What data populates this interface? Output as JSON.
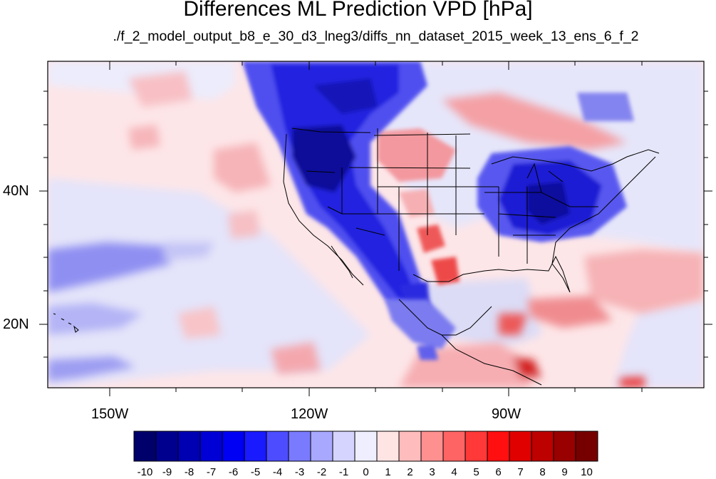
{
  "title": "Differences ML Prediction VPD [hPa]",
  "subtitle": "./f_2_model_output_b8_e_30_d3_lneg3/diffs_nn_dataset_2015_week_13_ens_6_f_2",
  "axes": {
    "lon_labels": [
      "150W",
      "120W",
      "90W"
    ],
    "lat_labels": [
      "40N",
      "20N"
    ]
  },
  "colorbar": {
    "labels": [
      "-10",
      "-9",
      "-8",
      "-7",
      "-6",
      "-5",
      "-4",
      "-3",
      "-2",
      "-1",
      "0",
      "1",
      "2",
      "3",
      "4",
      "5",
      "6",
      "7",
      "8",
      "9",
      "10"
    ],
    "colors": [
      "#00006b",
      "#00008f",
      "#0000b3",
      "#0000d6",
      "#0000f5",
      "#1a1aff",
      "#4d4dff",
      "#7a7aff",
      "#a8a8ff",
      "#d4d4ff",
      "#eeeeff",
      "#ffe4e4",
      "#ffbcbc",
      "#ff9090",
      "#ff6464",
      "#ff3838",
      "#ff0f0f",
      "#e00000",
      "#bd0000",
      "#990000",
      "#760000"
    ]
  }
}
